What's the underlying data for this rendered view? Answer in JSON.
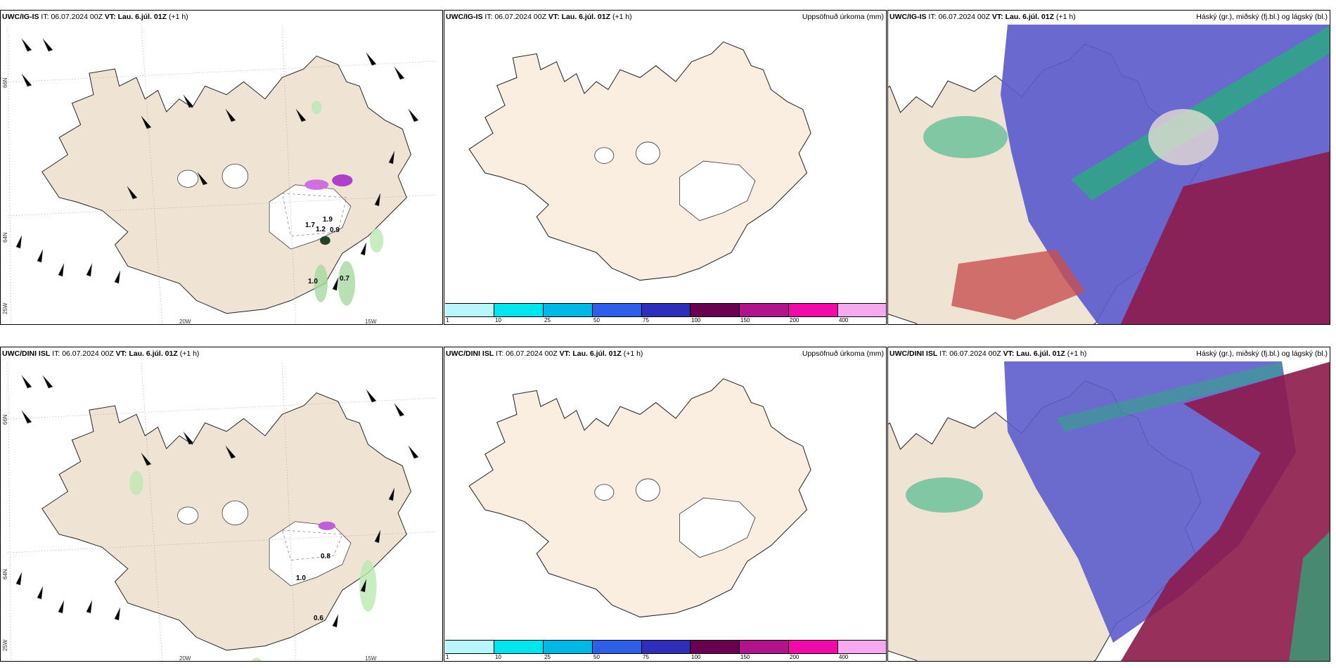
{
  "panels": [
    {
      "model": "UWC/IG-IS",
      "it_label": "IT:",
      "it": "06.07.2024 00Z",
      "vt_label": "VT:",
      "vt": "Lau. 6.júl. 01Z",
      "lead": "(+1 h)",
      "right_title": ""
    },
    {
      "model": "UWC/IG-IS",
      "it_label": "IT:",
      "it": "06.07.2024 00Z",
      "vt_label": "VT:",
      "vt": "Lau. 6.júl. 01Z",
      "lead": "(+1 h)",
      "right_title": "Uppsöfnuð úrkoma (mm)"
    },
    {
      "model": "UWC/IG-IS",
      "it_label": "IT:",
      "it": "06.07.2024 00Z",
      "vt_label": "VT:",
      "vt": "Lau. 6.júl. 01Z",
      "lead": "(+1 h)",
      "right_title": "Háský (gr.), miðský (fj.bl.) og lágský (bl.)"
    },
    {
      "model": "UWC/DINI ISL",
      "it_label": "IT:",
      "it": "06.07.2024 00Z",
      "vt_label": "VT:",
      "vt": "Lau. 6.júl. 01Z",
      "lead": "(+1 h)",
      "right_title": ""
    },
    {
      "model": "UWC/DINI ISL",
      "it_label": "IT:",
      "it": "06.07.2024 00Z",
      "vt_label": "VT:",
      "vt": "Lau. 6.júl. 01Z",
      "lead": "(+1 h)",
      "right_title": "Uppsöfnuð úrkoma (mm)"
    },
    {
      "model": "UWC/DINI ISL",
      "it_label": "IT:",
      "it": "06.07.2024 00Z",
      "vt_label": "VT:",
      "vt": "Lau. 6.júl. 01Z",
      "lead": "(+1 h)",
      "right_title": "Háský (gr.), miðský (fj.bl.) og lágský (bl.)"
    }
  ],
  "grid_labels": {
    "lat_66": "66N",
    "lat_64": "64N",
    "lon_25": "25W",
    "lon_20": "20W",
    "lon_15": "15W"
  },
  "point_values": {
    "top": [
      "1.7",
      "1.9",
      "1.2",
      "0.9",
      "1.0",
      "0.7"
    ],
    "bottom": [
      "0.8",
      "1.0",
      "0.6"
    ]
  },
  "colorbar": {
    "ticks": [
      "1",
      "10",
      "25",
      "50",
      "75",
      "100",
      "150",
      "200",
      "400"
    ],
    "colors": [
      "#b9f6fb",
      "#00e5ee",
      "#00b8e6",
      "#2f5fe8",
      "#2e2fb8",
      "#6a0050",
      "#b0148a",
      "#f00aa8",
      "#f5aaf0"
    ]
  },
  "colors": {
    "land": "#efe3d4",
    "land_precip": "#faeee0",
    "green": "#b9e8b0",
    "blue": "#5c5ccc",
    "red": "#9a1a4a",
    "teal": "#26b07a"
  }
}
